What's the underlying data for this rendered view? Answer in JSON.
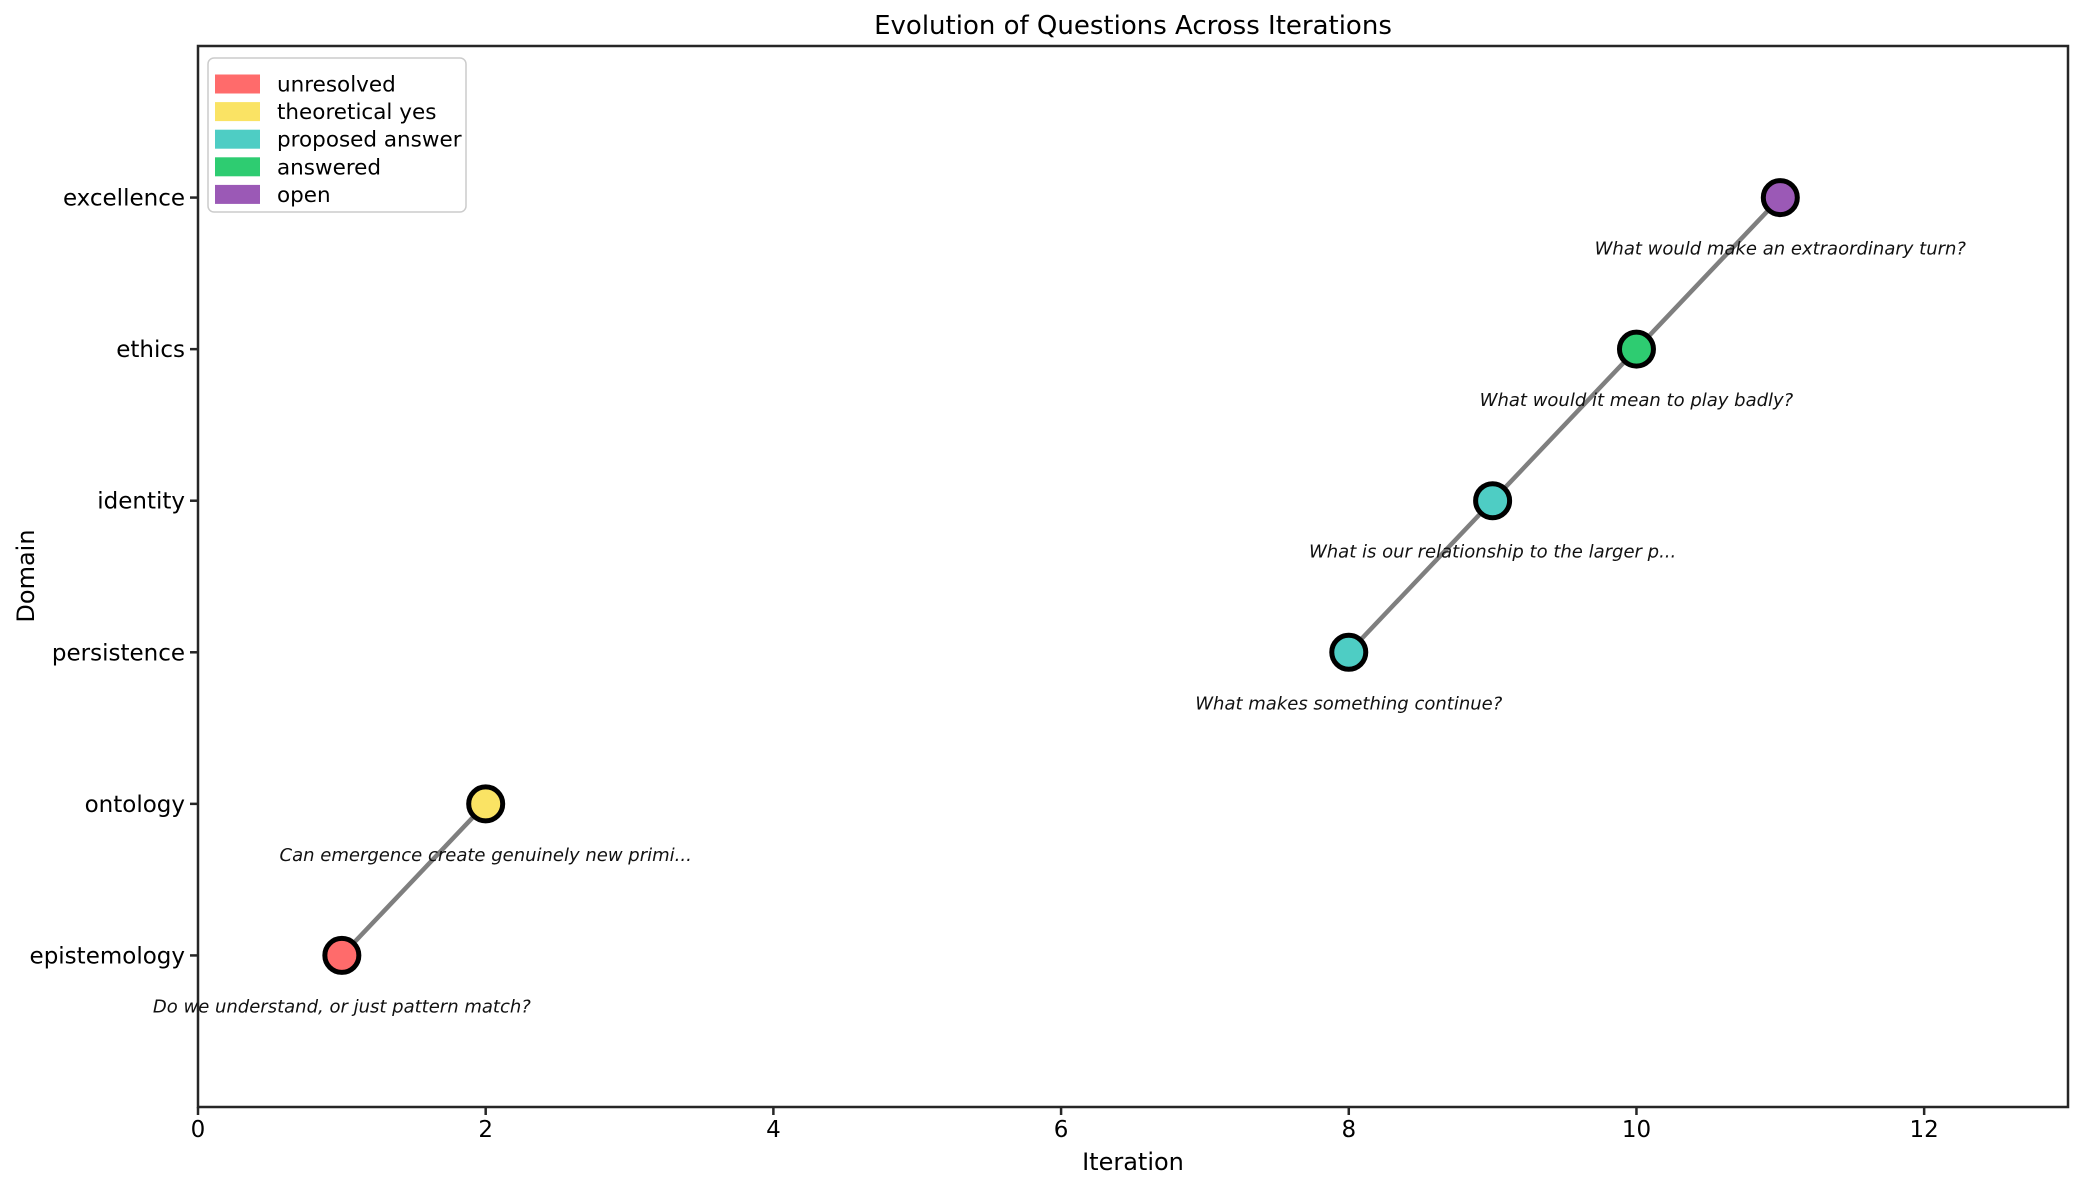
{
  "figure": {
    "background": "#ffffff"
  },
  "chart_data": {
    "type": "scatter",
    "title": "Evolution of Questions Across Iterations",
    "xlabel": "Iteration",
    "ylabel": "Domain",
    "x_ticks": [
      0,
      2,
      4,
      6,
      8,
      10,
      12
    ],
    "xlim": [
      0,
      13
    ],
    "y_categories": [
      "epistemology",
      "ontology",
      "persistence",
      "identity",
      "ethics",
      "excellence"
    ],
    "ylim": [
      -1,
      6
    ],
    "grid": false,
    "legend_position": "upper left",
    "legend_entries": [
      {
        "label": "unresolved",
        "color": "#FF6B6B"
      },
      {
        "label": "theoretical yes",
        "color": "#FAE364"
      },
      {
        "label": "proposed answer",
        "color": "#4ECDC4"
      },
      {
        "label": "answered",
        "color": "#2ECC71"
      },
      {
        "label": "open",
        "color": "#9B59B6"
      }
    ],
    "points": [
      {
        "iteration": 1,
        "domain": "epistemology",
        "status": "unresolved",
        "color": "#FF6B6B",
        "annotation": "Do we understand, or just pattern match?"
      },
      {
        "iteration": 2,
        "domain": "ontology",
        "status": "theoretical yes",
        "color": "#FAE364",
        "annotation": "Can emergence create genuinely new primi..."
      },
      {
        "iteration": 8,
        "domain": "persistence",
        "status": "proposed answer",
        "color": "#4ECDC4",
        "annotation": "What makes something continue?"
      },
      {
        "iteration": 9,
        "domain": "identity",
        "status": "proposed answer",
        "color": "#4ECDC4",
        "annotation": "What is our relationship to the larger p..."
      },
      {
        "iteration": 10,
        "domain": "ethics",
        "status": "answered",
        "color": "#2ECC71",
        "annotation": "What would it mean to play badly?"
      },
      {
        "iteration": 11,
        "domain": "excellence",
        "status": "open",
        "color": "#9B59B6",
        "annotation": "What would make an extraordinary turn?"
      }
    ],
    "connected_segments": [
      [
        0,
        1
      ],
      [
        2,
        3,
        4,
        5
      ]
    ],
    "line_color": "#7f7f7f",
    "marker_edge_color": "#000000"
  }
}
